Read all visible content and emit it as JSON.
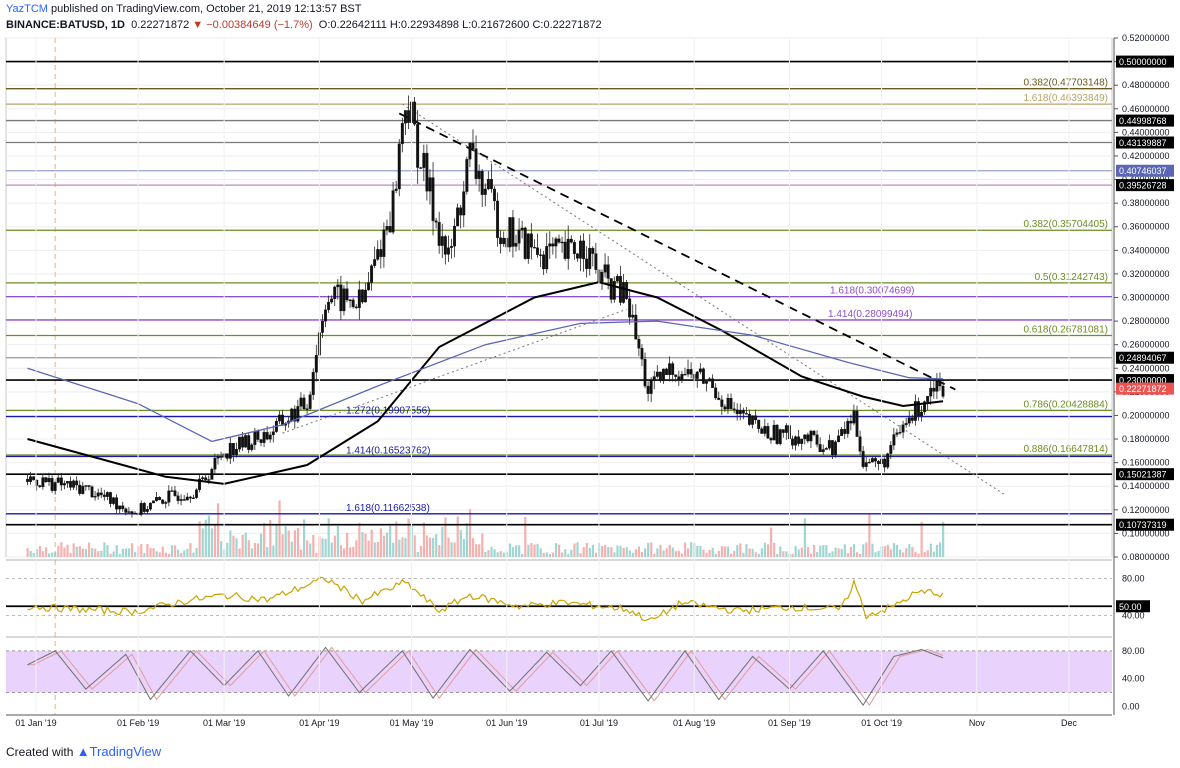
{
  "header": {
    "author": "YazTCM",
    "published": " published on TradingView.com, October 21, 2019 12:13:57 BST",
    "symbol_line": "BINANCE:BATUSD, 1D",
    "last": "0.22271872",
    "change": "▼ −0.00384649 (−1.7%)",
    "ohlc": "O:0.22642111  H:0.22934898  L:0.21672600  C:0.22271872"
  },
  "footer": {
    "created": "Created with",
    "brand": "TradingView"
  },
  "colors": {
    "up": "#26a69a",
    "down": "#ef5350",
    "fib_green": "#6b8e23",
    "fib_blue": "#1a1aa6",
    "fib_purple": "#8a4fcf",
    "ma_black": "#000000",
    "ma_blue": "#5b67b5",
    "rsi": "#c9a400",
    "stoch_k": "#6f6f6f",
    "stoch_band": "#e9d2fb"
  },
  "chart_data": {
    "type": "candlestick",
    "title": "BINANCE:BATUSD, 1D",
    "y_scale": [
      0.08,
      0.52
    ],
    "y_ticks": [
      "0.52000000",
      "0.50000000",
      "0.48000000",
      "0.46000000",
      "0.44000000",
      "0.42000000",
      "0.40000000",
      "0.38000000",
      "0.36000000",
      "0.34000000",
      "0.32000000",
      "0.30000000",
      "0.28000000",
      "0.26000000",
      "0.24000000",
      "0.22000000",
      "0.20000000",
      "0.18000000",
      "0.16000000",
      "0.14000000",
      "0.12000000",
      "0.10000000",
      "0.08000000"
    ],
    "x_ticks": [
      "01 Jan '19",
      "01 Feb '19",
      "01 Mar '19",
      "01 Apr '19",
      "01 May '19",
      "01 Jun '19",
      "01 Jul '19",
      "01 Aug '19",
      "01 Sep '19",
      "01 Oct '19",
      "Nov",
      "Dec"
    ],
    "price_path": [
      [
        "2018-12-27",
        0.146
      ],
      [
        "2019-01-15",
        0.138
      ],
      [
        "2019-01-31",
        0.118
      ],
      [
        "2019-02-10",
        0.13
      ],
      [
        "2019-02-20",
        0.137
      ],
      [
        "2019-03-01",
        0.17
      ],
      [
        "2019-03-15",
        0.184
      ],
      [
        "2019-03-28",
        0.21
      ],
      [
        "2019-04-03",
        0.3
      ],
      [
        "2019-04-15",
        0.295
      ],
      [
        "2019-04-25",
        0.38
      ],
      [
        "2019-04-29",
        0.47
      ],
      [
        "2019-05-06",
        0.395
      ],
      [
        "2019-05-13",
        0.33
      ],
      [
        "2019-05-20",
        0.42
      ],
      [
        "2019-05-30",
        0.36
      ],
      [
        "2019-06-10",
        0.34
      ],
      [
        "2019-06-20",
        0.335
      ],
      [
        "2019-06-26",
        0.345
      ],
      [
        "2019-07-01",
        0.318
      ],
      [
        "2019-07-10",
        0.3
      ],
      [
        "2019-07-17",
        0.22
      ],
      [
        "2019-07-25",
        0.24
      ],
      [
        "2019-08-05",
        0.23
      ],
      [
        "2019-08-15",
        0.2
      ],
      [
        "2019-08-25",
        0.185
      ],
      [
        "2019-09-05",
        0.182
      ],
      [
        "2019-09-15",
        0.172
      ],
      [
        "2019-09-22",
        0.2
      ],
      [
        "2019-09-25",
        0.162
      ],
      [
        "2019-10-01",
        0.158
      ],
      [
        "2019-10-08",
        0.19
      ],
      [
        "2019-10-15",
        0.214
      ],
      [
        "2019-10-18",
        0.23
      ],
      [
        "2019-10-21",
        0.2227
      ]
    ],
    "moving_averages": [
      {
        "name": "MA-black",
        "points": [
          [
            "2018-12-27",
            0.18
          ],
          [
            "2019-02-10",
            0.148
          ],
          [
            "2019-03-01",
            0.142
          ],
          [
            "2019-03-28",
            0.158
          ],
          [
            "2019-04-20",
            0.195
          ],
          [
            "2019-05-10",
            0.258
          ],
          [
            "2019-06-10",
            0.3
          ],
          [
            "2019-07-01",
            0.313
          ],
          [
            "2019-07-20",
            0.3
          ],
          [
            "2019-08-10",
            0.272
          ],
          [
            "2019-09-05",
            0.233
          ],
          [
            "2019-09-25",
            0.216
          ],
          [
            "2019-10-08",
            0.208
          ],
          [
            "2019-10-21",
            0.212
          ]
        ]
      },
      {
        "name": "MA-blue",
        "points": [
          [
            "2018-12-27",
            0.24
          ],
          [
            "2019-02-01",
            0.21
          ],
          [
            "2019-02-25",
            0.178
          ],
          [
            "2019-03-20",
            0.192
          ],
          [
            "2019-04-20",
            0.225
          ],
          [
            "2019-05-25",
            0.26
          ],
          [
            "2019-06-25",
            0.278
          ],
          [
            "2019-07-20",
            0.28
          ],
          [
            "2019-08-20",
            0.268
          ],
          [
            "2019-09-20",
            0.245
          ],
          [
            "2019-10-10",
            0.232
          ],
          [
            "2019-10-21",
            0.231
          ]
        ]
      }
    ],
    "trendlines": [
      {
        "name": "falling-dashed",
        "from": [
          "2019-04-27",
          0.456
        ],
        "to": [
          "2019-10-25",
          0.222
        ]
      },
      {
        "name": "dotted-support",
        "from": [
          "2019-03-20",
          0.185
        ],
        "to": [
          "2019-07-10",
          0.29
        ]
      },
      {
        "name": "dotted-resistance",
        "from": [
          "2019-04-28",
          0.464
        ],
        "to": [
          "2019-11-10",
          0.133
        ]
      }
    ],
    "horizontal_levels": [
      {
        "value": 0.5,
        "label": "",
        "color": "#000000"
      },
      {
        "value": 0.47703148,
        "label": "0.382(0.47703148)",
        "color": "#6b5b1f"
      },
      {
        "value": 0.46393849,
        "label": "1.618(0.46393849)",
        "color": "#b8a46a"
      },
      {
        "value": 0.44998768,
        "label": "",
        "color": "#7a7a7a"
      },
      {
        "value": 0.43139887,
        "label": "",
        "color": "#7a7a7a"
      },
      {
        "value": 0.40746037,
        "label": "",
        "color": "#9aa0c8"
      },
      {
        "value": 0.39526728,
        "label": "",
        "color": "#c28ab8"
      },
      {
        "value": 0.35704405,
        "label": "0.382(0.35704405)",
        "color": "#6b8e23"
      },
      {
        "value": 0.31242743,
        "label": "0.5(0.31242743)",
        "color": "#6b8e23"
      },
      {
        "value": 0.30074699,
        "label": "1.618(0.30074699)",
        "color": "#8a4fcf"
      },
      {
        "value": 0.28099494,
        "label": "1.414(0.28099494)",
        "color": "#8a4fcf"
      },
      {
        "value": 0.26781081,
        "label": "0.618(0.26781081)",
        "color": "#6b8e23"
      },
      {
        "value": 0.24894067,
        "label": "",
        "color": "#9a9a9a"
      },
      {
        "value": 0.23,
        "label": "",
        "color": "#000000"
      },
      {
        "value": 0.20428884,
        "label": "0.786(0.20428884)",
        "color": "#6b8e23"
      },
      {
        "value": 0.19907556,
        "label": "1.272(0.19907556)",
        "color": "#1a1aa6"
      },
      {
        "value": 0.16647814,
        "label": "0.886(0.16647814)",
        "color": "#6b8e23"
      },
      {
        "value": 0.16523762,
        "label": "1.414(0.16523762)",
        "color": "#1a1aa6"
      },
      {
        "value": 0.15021387,
        "label": "",
        "color": "#000000"
      },
      {
        "value": 0.11662538,
        "label": "1.618(0.11662538)",
        "color": "#1a1aa6"
      },
      {
        "value": 0.10737319,
        "label": "",
        "color": "#000000"
      }
    ],
    "price_tags": [
      {
        "value": 0.5,
        "text": "0.50000000",
        "bg": "#000000",
        "fg": "#ffffff"
      },
      {
        "value": 0.44998768,
        "text": "0.44998768",
        "bg": "#000000",
        "fg": "#ffffff"
      },
      {
        "value": 0.43139887,
        "text": "0.43139887",
        "bg": "#000000",
        "fg": "#ffffff"
      },
      {
        "value": 0.40746037,
        "text": "0.40746037",
        "bg": "#5b67b5",
        "fg": "#ffffff"
      },
      {
        "value": 0.39526728,
        "text": "0.39526728",
        "bg": "#000000",
        "fg": "#ffffff"
      },
      {
        "value": 0.24894067,
        "text": "0.24894067",
        "bg": "#000000",
        "fg": "#ffffff"
      },
      {
        "value": 0.23,
        "text": "0.23000000",
        "bg": "#000000",
        "fg": "#ffffff"
      },
      {
        "value": 0.22271872,
        "text": "0.22271872",
        "bg": "#ef5350",
        "fg": "#ffffff"
      },
      {
        "value": 0.15021387,
        "text": "0.15021387",
        "bg": "#000000",
        "fg": "#ffffff"
      },
      {
        "value": 0.10737319,
        "text": "0.10737319",
        "bg": "#000000",
        "fg": "#ffffff"
      }
    ],
    "rsi": {
      "ticks": [
        "80.00",
        "40.00"
      ],
      "level_tag": "50.00",
      "range": [
        20,
        100
      ],
      "points": [
        [
          "2018-12-27",
          50
        ],
        [
          "2019-01-10",
          47
        ],
        [
          "2019-01-31",
          44
        ],
        [
          "2019-02-15",
          55
        ],
        [
          "2019-03-01",
          62
        ],
        [
          "2019-03-15",
          57
        ],
        [
          "2019-04-03",
          80
        ],
        [
          "2019-04-15",
          56
        ],
        [
          "2019-04-29",
          76
        ],
        [
          "2019-05-10",
          45
        ],
        [
          "2019-05-20",
          62
        ],
        [
          "2019-06-05",
          50
        ],
        [
          "2019-06-20",
          54
        ],
        [
          "2019-07-10",
          47
        ],
        [
          "2019-07-18",
          34
        ],
        [
          "2019-07-28",
          54
        ],
        [
          "2019-08-15",
          45
        ],
        [
          "2019-09-01",
          49
        ],
        [
          "2019-09-18",
          47
        ],
        [
          "2019-09-22",
          76
        ],
        [
          "2019-09-26",
          40
        ],
        [
          "2019-10-05",
          50
        ],
        [
          "2019-10-12",
          64
        ],
        [
          "2019-10-18",
          66
        ],
        [
          "2019-10-21",
          61
        ]
      ]
    },
    "stoch": {
      "ticks": [
        "80.00",
        "40.00",
        "0.00"
      ],
      "range": [
        -8,
        100
      ],
      "band": [
        20,
        80
      ],
      "points": [
        [
          "2018-12-27",
          60
        ],
        [
          "2019-01-05",
          80
        ],
        [
          "2019-01-15",
          25
        ],
        [
          "2019-01-28",
          75
        ],
        [
          "2019-02-05",
          10
        ],
        [
          "2019-02-18",
          80
        ],
        [
          "2019-03-01",
          30
        ],
        [
          "2019-03-12",
          80
        ],
        [
          "2019-03-22",
          15
        ],
        [
          "2019-04-03",
          85
        ],
        [
          "2019-04-14",
          20
        ],
        [
          "2019-04-28",
          80
        ],
        [
          "2019-05-08",
          12
        ],
        [
          "2019-05-20",
          82
        ],
        [
          "2019-06-02",
          22
        ],
        [
          "2019-06-14",
          78
        ],
        [
          "2019-06-25",
          30
        ],
        [
          "2019-07-05",
          80
        ],
        [
          "2019-07-17",
          8
        ],
        [
          "2019-07-29",
          80
        ],
        [
          "2019-08-09",
          10
        ],
        [
          "2019-08-20",
          72
        ],
        [
          "2019-09-01",
          25
        ],
        [
          "2019-09-12",
          80
        ],
        [
          "2019-09-25",
          2
        ],
        [
          "2019-10-05",
          72
        ],
        [
          "2019-10-14",
          82
        ],
        [
          "2019-10-21",
          70
        ]
      ]
    }
  }
}
